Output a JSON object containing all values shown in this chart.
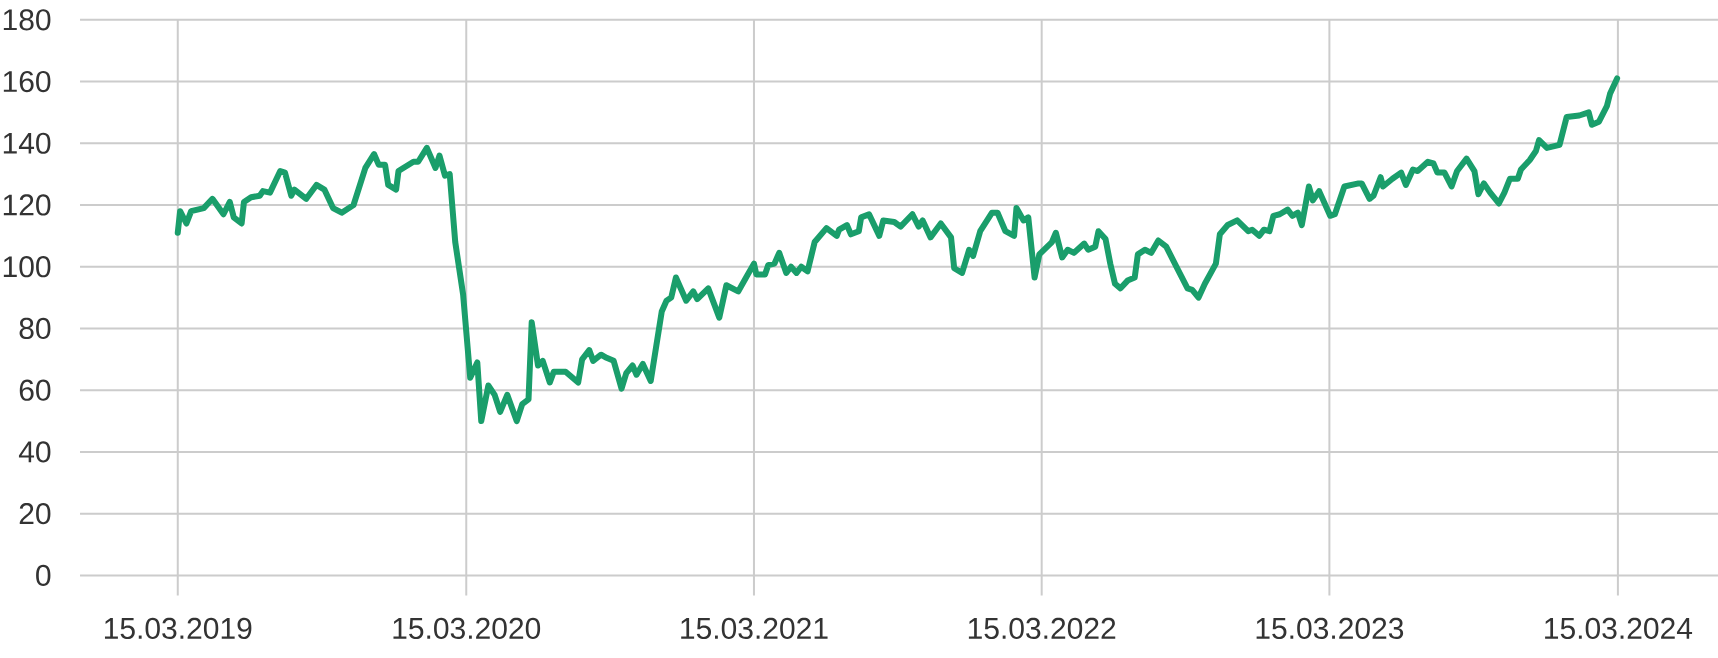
{
  "chart_data": {
    "type": "line",
    "x": [
      "2019-03-15",
      "2019-03-18",
      "2019-03-26",
      "2019-04-01",
      "2019-04-17",
      "2019-04-28",
      "2019-05-12",
      "2019-05-20",
      "2019-05-25",
      "2019-06-04",
      "2019-06-07",
      "2019-06-16",
      "2019-06-27",
      "2019-07-01",
      "2019-07-10",
      "2019-07-23",
      "2019-07-29",
      "2019-08-06",
      "2019-08-10",
      "2019-08-25",
      "2019-09-07",
      "2019-09-17",
      "2019-09-28",
      "2019-10-09",
      "2019-10-24",
      "2019-11-08",
      "2019-11-19",
      "2019-11-25",
      "2019-12-03",
      "2019-12-07",
      "2019-12-17",
      "2019-12-20",
      "2020-01-08",
      "2020-01-14",
      "2020-01-25",
      "2020-02-05",
      "2020-02-10",
      "2020-02-17",
      "2020-02-23",
      "2020-03-01",
      "2020-03-11",
      "2020-03-20",
      "2020-03-29",
      "2020-04-03",
      "2020-04-12",
      "2020-04-20",
      "2020-04-27",
      "2020-05-06",
      "2020-05-18",
      "2020-05-25",
      "2020-06-02",
      "2020-06-06",
      "2020-06-14",
      "2020-06-20",
      "2020-06-29",
      "2020-07-04",
      "2020-07-19",
      "2020-08-04",
      "2020-08-09",
      "2020-08-18",
      "2020-08-23",
      "2020-09-02",
      "2020-09-09",
      "2020-09-18",
      "2020-09-28",
      "2020-10-04",
      "2020-10-12",
      "2020-10-17",
      "2020-10-25",
      "2020-11-04",
      "2020-11-18",
      "2020-11-24",
      "2020-11-30",
      "2020-12-06",
      "2020-12-19",
      "2020-12-28",
      "2021-01-02",
      "2021-01-16",
      "2021-01-30",
      "2021-02-08",
      "2021-02-23",
      "2021-03-05",
      "2021-03-15",
      "2021-03-18",
      "2021-03-29",
      "2021-04-02",
      "2021-04-10",
      "2021-04-16",
      "2021-04-25",
      "2021-05-01",
      "2021-05-08",
      "2021-05-14",
      "2021-05-22",
      "2021-05-31",
      "2021-06-15",
      "2021-06-28",
      "2021-07-01",
      "2021-07-11",
      "2021-07-16",
      "2021-07-26",
      "2021-07-29",
      "2021-08-08",
      "2021-08-21",
      "2021-08-26",
      "2021-09-09",
      "2021-09-17",
      "2021-10-02",
      "2021-10-10",
      "2021-10-15",
      "2021-10-25",
      "2021-11-07",
      "2021-11-20",
      "2021-11-24",
      "2021-12-04",
      "2021-12-13",
      "2021-12-18",
      "2021-12-27",
      "2022-01-11",
      "2022-01-18",
      "2022-01-28",
      "2022-02-08",
      "2022-02-11",
      "2022-02-20",
      "2022-02-26",
      "2022-03-06",
      "2022-03-12",
      "2022-03-28",
      "2022-04-02",
      "2022-04-10",
      "2022-04-17",
      "2022-04-25",
      "2022-05-08",
      "2022-05-13",
      "2022-05-22",
      "2022-05-26",
      "2022-06-04",
      "2022-06-10",
      "2022-06-16",
      "2022-06-23",
      "2022-07-02",
      "2022-07-11",
      "2022-07-15",
      "2022-07-24",
      "2022-08-01",
      "2022-08-10",
      "2022-08-20",
      "2022-09-03",
      "2022-09-16",
      "2022-09-22",
      "2022-09-30",
      "2022-10-08",
      "2022-10-22",
      "2022-10-27",
      "2022-11-06",
      "2022-11-18",
      "2022-12-02",
      "2022-12-07",
      "2022-12-16",
      "2022-12-22",
      "2022-12-29",
      "2023-01-03",
      "2023-01-11",
      "2023-01-21",
      "2023-01-27",
      "2023-02-03",
      "2023-02-08",
      "2023-02-17",
      "2023-02-22",
      "2023-03-02",
      "2023-03-16",
      "2023-03-22",
      "2023-04-03",
      "2023-04-21",
      "2023-04-25",
      "2023-05-05",
      "2023-05-10",
      "2023-05-19",
      "2023-05-22",
      "2023-06-03",
      "2023-06-14",
      "2023-06-20",
      "2023-06-29",
      "2023-07-05",
      "2023-07-18",
      "2023-07-25",
      "2023-07-30",
      "2023-08-08",
      "2023-08-17",
      "2023-08-24",
      "2023-09-05",
      "2023-09-15",
      "2023-09-20",
      "2023-09-27",
      "2023-10-05",
      "2023-10-16",
      "2023-10-23",
      "2023-10-30",
      "2023-11-09",
      "2023-11-13",
      "2023-11-24",
      "2023-12-02",
      "2023-12-06",
      "2023-12-16",
      "2024-01-01",
      "2024-01-10",
      "2024-01-26",
      "2024-02-07",
      "2024-02-11",
      "2024-02-20",
      "2024-03-01",
      "2024-03-05",
      "2024-03-14"
    ],
    "series": [
      {
        "color": "#1a9e6b",
        "values": [
          111,
          118,
          114,
          118,
          119,
          122,
          117,
          121,
          116,
          114,
          121,
          122.5,
          123,
          124.5,
          124,
          131,
          130.5,
          123,
          125,
          122,
          126.5,
          125,
          119,
          117.5,
          120,
          132,
          136.5,
          133,
          133,
          126.5,
          125,
          131,
          134,
          134,
          138.5,
          132,
          136,
          129.5,
          130,
          108,
          91,
          64,
          69,
          50,
          61.5,
          58.5,
          53,
          58.5,
          50,
          55.5,
          57,
          82,
          68,
          69.5,
          62.5,
          66,
          66,
          62.5,
          70,
          73,
          69.5,
          71.5,
          70.5,
          69.5,
          60.5,
          65.5,
          68,
          65,
          68.5,
          63,
          85.5,
          89,
          90,
          96.5,
          89,
          92,
          89.5,
          93,
          83.5,
          94,
          92,
          96.5,
          101,
          97.5,
          97.5,
          100.5,
          101,
          104.5,
          98,
          100,
          98,
          100,
          98.5,
          108,
          112.5,
          110,
          112,
          113.5,
          110.5,
          111.5,
          116,
          117,
          110,
          115,
          114.5,
          113,
          117,
          113,
          115,
          109.5,
          114,
          109.5,
          99.5,
          98,
          105.5,
          103.5,
          111.5,
          117.5,
          117.5,
          111.5,
          110,
          119,
          115,
          116,
          96.5,
          104,
          108,
          111,
          103,
          105.5,
          104.5,
          107.5,
          105.5,
          106.5,
          111.5,
          109,
          101,
          94.5,
          93,
          95.5,
          96.5,
          104,
          105.5,
          104.5,
          108.5,
          106.5,
          99.5,
          93,
          92.5,
          90,
          94.5,
          101,
          110.5,
          113.5,
          115,
          111.5,
          112,
          110,
          112,
          111.5,
          116.5,
          117,
          118.5,
          116.5,
          117.5,
          113.5,
          126,
          121.5,
          124.5,
          116.5,
          117,
          126,
          127,
          127,
          122,
          123,
          129,
          126,
          128.5,
          130.5,
          126.5,
          131.5,
          131,
          134,
          133.5,
          130.5,
          130.5,
          126,
          131,
          135,
          131,
          123.5,
          127,
          124,
          120.5,
          124,
          128.5,
          128.5,
          131.5,
          134.5,
          137.5,
          141,
          138.5,
          139.5,
          148.5,
          149,
          150,
          146,
          147,
          152,
          156,
          161
        ]
      }
    ],
    "xlim": [
      "2018-11-11",
      "2024-07-20"
    ],
    "xticks": [
      {
        "value": "2019-03-15",
        "label": "15.03.2019"
      },
      {
        "value": "2020-03-15",
        "label": "15.03.2020"
      },
      {
        "value": "2021-03-15",
        "label": "15.03.2021"
      },
      {
        "value": "2022-03-15",
        "label": "15.03.2022"
      },
      {
        "value": "2023-03-15",
        "label": "15.03.2023"
      },
      {
        "value": "2024-03-15",
        "label": "15.03.2024"
      }
    ],
    "ylim": [
      0,
      180
    ],
    "yticks": [
      0,
      20,
      40,
      60,
      80,
      100,
      120,
      140,
      160,
      180
    ],
    "grid": true
  }
}
